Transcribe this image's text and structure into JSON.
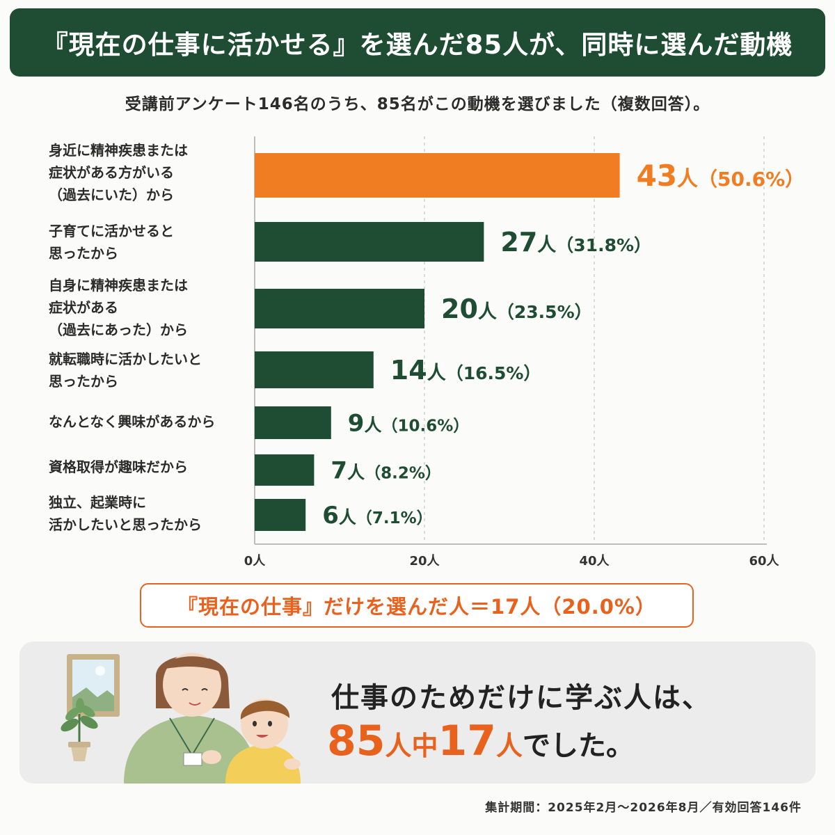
{
  "header": {
    "title": "『現在の仕事に活かせる』を選んだ85人が、同時に選んだ動機",
    "subtitle": "受講前アンケート146名のうち、85名がこの動機を選びました（複数回答）。"
  },
  "chart_data": {
    "type": "bar",
    "orientation": "horizontal",
    "categories": [
      "身近に精神疾患または\n症状がある方がいる\n（過去にいた）から",
      "子育てに活かせると\n思ったから",
      "自身に精神疾患または\n症状がある\n（過去にあった）から",
      "就転職時に活かしたいと\n思ったから",
      "なんとなく興味があるから",
      "資格取得が趣味だから",
      "独立、起業時に\n活かしたいと思ったから"
    ],
    "values": [
      43,
      27,
      20,
      14,
      9,
      7,
      6
    ],
    "value_labels": [
      "43人",
      "27人",
      "20人",
      "14人",
      "9人",
      "7人",
      "6人"
    ],
    "percent_labels": [
      "（50.6%）",
      "（31.8%）",
      "（23.5%）",
      "（16.5%）",
      "（10.6%）",
      "（8.2%）",
      "（7.1%）"
    ],
    "xlim": [
      0,
      60
    ],
    "xticks": [
      0,
      20,
      40,
      60
    ],
    "xtick_labels": [
      "0人",
      "20人",
      "40人",
      "60人"
    ],
    "grid": "vertical-dashed",
    "highlight_color": "#f07d22",
    "bar_color": "#1e4d33"
  },
  "summary": {
    "text": "『現在の仕事』だけを選んだ人＝17人（20.0%）"
  },
  "message": {
    "line1": "仕事のためだけに学ぶ人は、",
    "num1": "85",
    "unit1": "人",
    "mid": "中",
    "num2": "17",
    "unit2": "人",
    "tail": "でした。"
  },
  "footnote": "集計期間：2025年2月〜2026年8月／有効回答146件",
  "colors": {
    "header_bg": "#1e4d33",
    "accent": "#e8621e",
    "dark_green": "#1e4d33"
  },
  "illustration": {
    "icons": [
      "picture-frame-icon",
      "plant-icon",
      "woman-with-id-badge-icon",
      "child-icon"
    ]
  }
}
